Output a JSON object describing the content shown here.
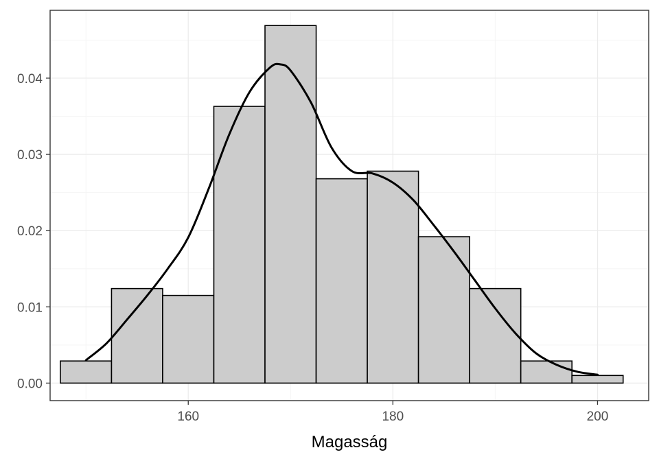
{
  "chart_data": {
    "type": "bar",
    "overlay": "density-line",
    "xlabel": "Magasság",
    "ylabel": "",
    "xlim": [
      146.5,
      205
    ],
    "ylim": [
      -0.0023,
      0.0489
    ],
    "x_ticks": [
      160,
      180,
      200
    ],
    "x_tick_labels": [
      "160",
      "180",
      "200"
    ],
    "y_ticks": [
      0,
      0.01,
      0.02,
      0.03,
      0.04
    ],
    "y_tick_labels": [
      "0.00",
      "0.01",
      "0.02",
      "0.03",
      "0.04"
    ],
    "grid": true,
    "bin_width": 5,
    "bins": [
      {
        "x_start": 147.5,
        "x_end": 152.5,
        "value": 0.0029
      },
      {
        "x_start": 152.5,
        "x_end": 157.5,
        "value": 0.0124
      },
      {
        "x_start": 157.5,
        "x_end": 162.5,
        "value": 0.0115
      },
      {
        "x_start": 162.5,
        "x_end": 167.5,
        "value": 0.0363
      },
      {
        "x_start": 167.5,
        "x_end": 172.5,
        "value": 0.0469
      },
      {
        "x_start": 172.5,
        "x_end": 177.5,
        "value": 0.0268
      },
      {
        "x_start": 177.5,
        "x_end": 182.5,
        "value": 0.0278
      },
      {
        "x_start": 182.5,
        "x_end": 187.5,
        "value": 0.0192
      },
      {
        "x_start": 187.5,
        "x_end": 192.5,
        "value": 0.0124
      },
      {
        "x_start": 192.5,
        "x_end": 197.5,
        "value": 0.0029
      },
      {
        "x_start": 197.5,
        "x_end": 202.5,
        "value": 0.001
      }
    ],
    "density": {
      "x": [
        150,
        152,
        154,
        156,
        158,
        160,
        162,
        164,
        166,
        168,
        169,
        170,
        172,
        174,
        176,
        178,
        180,
        182,
        184,
        186,
        188,
        190,
        192,
        194,
        196,
        198,
        200
      ],
      "y": [
        0.003,
        0.0052,
        0.0083,
        0.0115,
        0.015,
        0.0191,
        0.0255,
        0.0326,
        0.0382,
        0.0414,
        0.0418,
        0.041,
        0.0368,
        0.0309,
        0.0278,
        0.0275,
        0.0263,
        0.024,
        0.0207,
        0.0172,
        0.0135,
        0.0098,
        0.0065,
        0.0039,
        0.0024,
        0.0015,
        0.0011
      ]
    },
    "colors": {
      "bar_fill": "#cccccc",
      "bar_stroke": "#000000",
      "line": "#000000",
      "grid_major": "#ebebeb",
      "grid_minor": "#f5f5f5",
      "panel_border": "#333333",
      "tick_text": "#4d4d4d"
    }
  }
}
